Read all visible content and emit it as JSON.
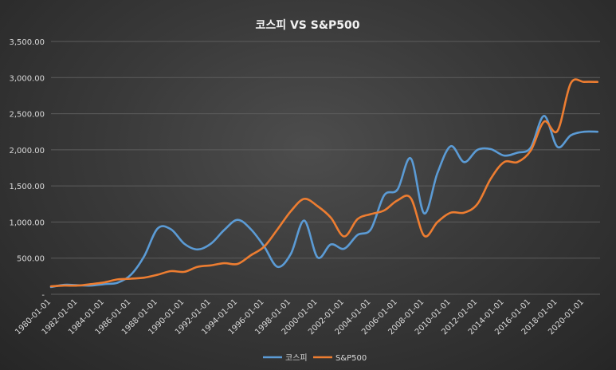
{
  "chart_data": {
    "type": "line",
    "title": "코스피 VS S&P500",
    "xlabel": "",
    "ylabel": "",
    "ylim": [
      0,
      3500
    ],
    "yticks": [
      0,
      500,
      1000,
      1500,
      2000,
      2500,
      3000,
      3500
    ],
    "ytick_labels": [
      "-",
      "500.00",
      "1,000.00",
      "1,500.00",
      "2,000.00",
      "2,500.00",
      "3,000.00",
      "3,500.00"
    ],
    "xlim": [
      1980,
      2021.2
    ],
    "xticks": [
      1980,
      1982,
      1984,
      1986,
      1988,
      1990,
      1992,
      1994,
      1996,
      1998,
      2000,
      2002,
      2004,
      2006,
      2008,
      2010,
      2012,
      2014,
      2016,
      2018,
      2020
    ],
    "xtick_labels": [
      "1980-01-01",
      "1982-01-01",
      "1984-01-01",
      "1986-01-01",
      "1988-01-01",
      "1990-01-01",
      "1992-01-01",
      "1994-01-01",
      "1996-01-01",
      "1998-01-01",
      "2000-01-01",
      "2002-01-01",
      "2004-01-01",
      "2006-01-01",
      "2008-01-01",
      "2010-01-01",
      "2012-01-01",
      "2014-01-01",
      "2016-01-01",
      "2018-01-01",
      "2020-01-01"
    ],
    "grid": true,
    "legend": "bottom-center",
    "series": [
      {
        "name": "코스피",
        "color": "#5b9bd5",
        "x": [
          1980,
          1981,
          1982,
          1983,
          1984,
          1985,
          1986,
          1987,
          1988,
          1989,
          1990,
          1991,
          1992,
          1993,
          1994,
          1995,
          1996,
          1997,
          1998,
          1999,
          2000,
          2001,
          2002,
          2003,
          2004,
          2005,
          2006,
          2007,
          2008,
          2009,
          2010,
          2011,
          2012,
          2013,
          2014,
          2015,
          2016,
          2017,
          2018,
          2019,
          2020,
          2021
        ],
        "values": [
          100,
          130,
          125,
          120,
          140,
          160,
          270,
          530,
          910,
          900,
          700,
          620,
          700,
          890,
          1030,
          900,
          660,
          380,
          560,
          1020,
          510,
          690,
          630,
          820,
          900,
          1370,
          1450,
          1880,
          1120,
          1680,
          2050,
          1830,
          2000,
          2010,
          1920,
          1960,
          2030,
          2470,
          2040,
          2200,
          2250,
          2250
        ]
      },
      {
        "name": "S&P500",
        "color": "#ed7d31",
        "x": [
          1980,
          1981,
          1982,
          1983,
          1984,
          1985,
          1986,
          1987,
          1988,
          1989,
          1990,
          1991,
          1992,
          1993,
          1994,
          1995,
          1996,
          1997,
          1998,
          1999,
          2000,
          2001,
          2002,
          2003,
          2004,
          2005,
          2006,
          2007,
          2008,
          2009,
          2010,
          2011,
          2012,
          2013,
          2014,
          2015,
          2016,
          2017,
          2018,
          2019,
          2020,
          2021
        ],
        "values": [
          110,
          120,
          120,
          140,
          165,
          205,
          215,
          230,
          270,
          320,
          310,
          380,
          400,
          430,
          420,
          540,
          660,
          900,
          1150,
          1320,
          1220,
          1060,
          800,
          1040,
          1110,
          1160,
          1300,
          1330,
          810,
          1000,
          1130,
          1130,
          1250,
          1600,
          1830,
          1830,
          1990,
          2390,
          2260,
          2920,
          2940,
          2940
        ]
      }
    ]
  }
}
